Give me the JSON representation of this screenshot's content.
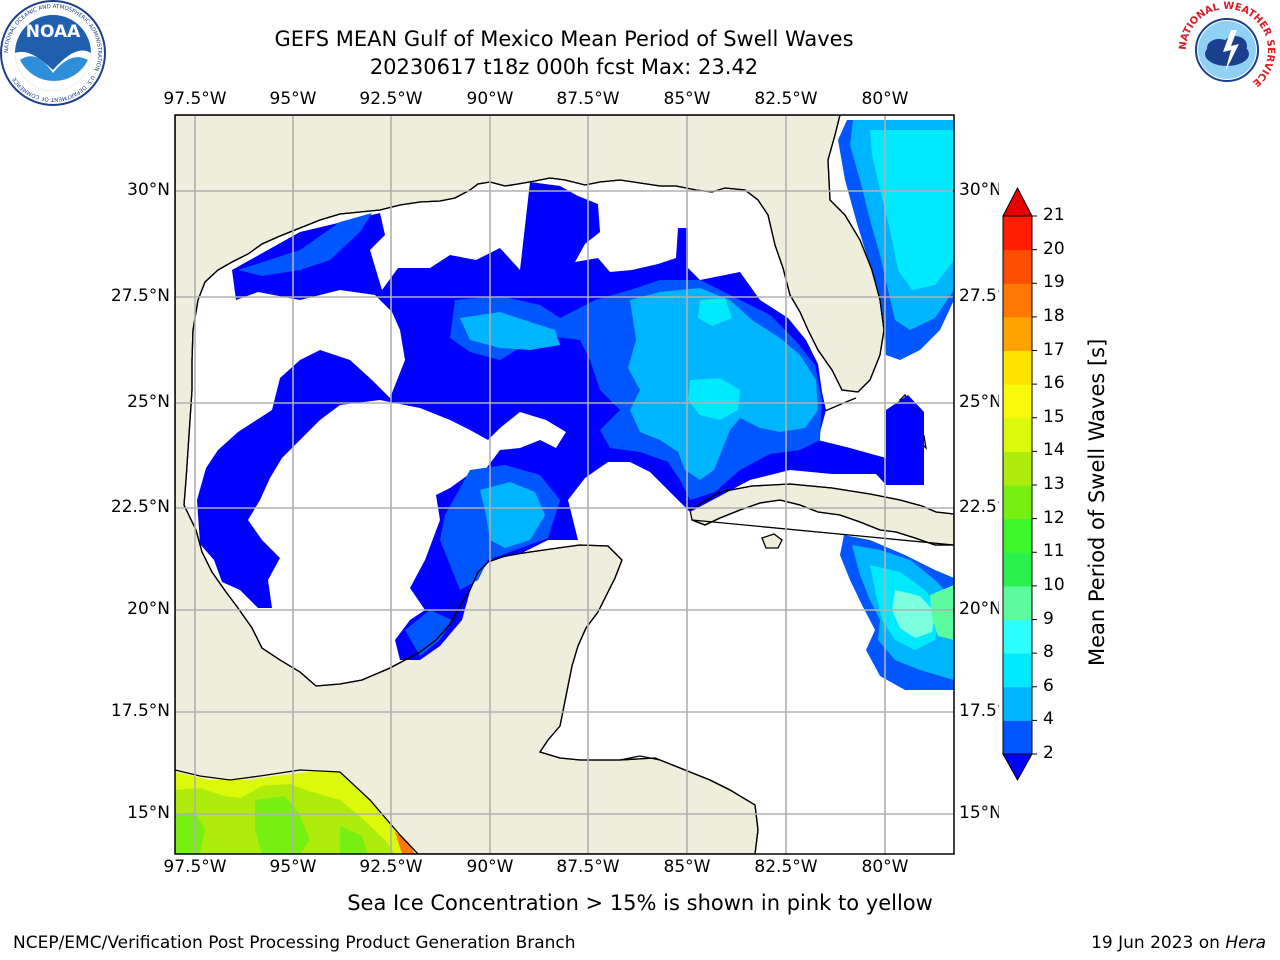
{
  "title": {
    "line1": "GEFS MEAN Gulf of Mexico Mean Period of Swell Waves",
    "line2": "20230617 t18z 000h fcst   Max: 23.42"
  },
  "map": {
    "lon_labels": [
      "97.5°W",
      "95°W",
      "92.5°W",
      "90°W",
      "87.5°W",
      "85°W",
      "82.5°W",
      "80°W"
    ],
    "lat_labels_left": [
      "30°N",
      "27.5°N",
      "25°N",
      "22.5°N",
      "20°N",
      "17.5°N",
      "15°N"
    ],
    "lat_labels_right": [
      "30°N",
      "27.5°N",
      "25°N",
      "22.5°N",
      "20°N",
      "17.5°N",
      "15°N"
    ],
    "land_color": "#efeedc",
    "ocean_color": "#ffffff",
    "grid_color": "#b0b0b0"
  },
  "colorbar": {
    "label": "Mean Period of Swell Waves [s]",
    "ticks": [
      "2",
      "4",
      "6",
      "8",
      "9",
      "10",
      "11",
      "12",
      "13",
      "14",
      "15",
      "16",
      "17",
      "18",
      "19",
      "20",
      "21"
    ],
    "colors": [
      "#0000ff",
      "#0057ff",
      "#00b5ff",
      "#00e9ff",
      "#2dffff",
      "#7bffde",
      "#5cfb9e",
      "#29f04a",
      "#3cf82b",
      "#78ef13",
      "#aeed0b",
      "#dcf90b",
      "#f8f90c",
      "#ffe400",
      "#ffc800",
      "#ffa300",
      "#ff7800",
      "#ff4e00",
      "#ff1e00",
      "#e60000"
    ]
  },
  "note": "Sea Ice Concentration > 15% is shown in pink to yellow",
  "footer": {
    "left": "NCEP/EMC/Verification Post Processing Product Generation Branch",
    "right_prefix": "19 Jun 2023 on ",
    "right_host": "Hera"
  },
  "logos": {
    "left": "NOAA",
    "left_ring": "NATIONAL OCEANIC AND ATMOSPHERIC ADMINISTRATION · U.S. DEPARTMENT OF COMMERCE",
    "right_ring": "NATIONAL WEATHER SERVICE"
  }
}
